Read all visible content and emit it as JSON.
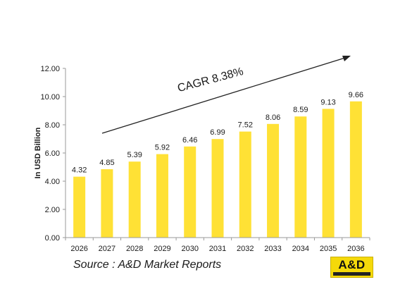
{
  "chart_data": {
    "type": "bar",
    "title": "",
    "xlabel": "",
    "ylabel": "In USD Billion",
    "categories": [
      "2026",
      "2027",
      "2028",
      "2029",
      "2030",
      "2031",
      "2032",
      "2033",
      "2034",
      "2035",
      "2036"
    ],
    "values": [
      4.32,
      4.85,
      5.39,
      5.92,
      6.46,
      6.99,
      7.52,
      8.06,
      8.59,
      9.13,
      9.66
    ],
    "value_labels": [
      "4.32",
      "4.85",
      "5.39",
      "5.92",
      "6.46",
      "6.99",
      "7.52",
      "8.06",
      "8.59",
      "9.13",
      "9.66"
    ],
    "ylim": [
      0,
      12
    ],
    "yticks": [
      "0.00",
      "2.00",
      "4.00",
      "6.00",
      "8.00",
      "10.00",
      "12.00"
    ],
    "grid": false,
    "legend": "none",
    "annotation": "CAGR 8.38%",
    "colors": {
      "bar": "#ffe135",
      "axis": "#9a9a9a",
      "text": "#1a1a1a",
      "arrow": "#222222"
    }
  },
  "source": "Source : A&D Market Reports",
  "logo": {
    "text": "A&D"
  }
}
